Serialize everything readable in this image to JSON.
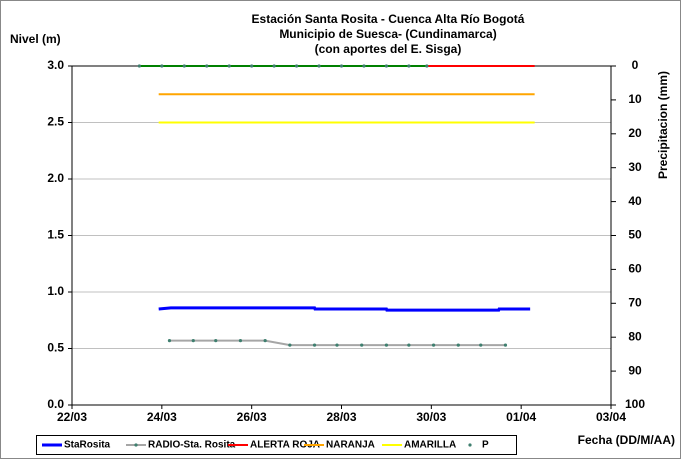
{
  "chart_data": {
    "type": "line",
    "title": [
      "Estación Santa Rosita - Cuenca Alta Río Bogotá",
      "Municipio de Suesca- (Cundinamarca)",
      "(con aportes del  E. Sisga)"
    ],
    "y_label": "Nivel (m)",
    "y2_label": "Precipitacion (mm)",
    "x_label": "Fecha (DD/M/AA)",
    "xlim": [
      22,
      34
    ],
    "xticks": [
      {
        "value": 22,
        "label": "22/03"
      },
      {
        "value": 24,
        "label": "24/03"
      },
      {
        "value": 26,
        "label": "26/03"
      },
      {
        "value": 28,
        "label": "28/03"
      },
      {
        "value": 30,
        "label": "30/03"
      },
      {
        "value": 32,
        "label": "01/04"
      },
      {
        "value": 34,
        "label": "03/04"
      }
    ],
    "ylim": [
      0,
      3
    ],
    "yticks": [
      {
        "value": 0,
        "label": "0.0"
      },
      {
        "value": 0.5,
        "label": "0.5"
      },
      {
        "value": 1,
        "label": "1.0"
      },
      {
        "value": 1.5,
        "label": "1.5"
      },
      {
        "value": 2,
        "label": "2.0"
      },
      {
        "value": 2.5,
        "label": "2.5"
      },
      {
        "value": 3,
        "label": "3.0"
      }
    ],
    "y2lim": [
      100,
      0
    ],
    "y2ticks": [
      0,
      10,
      20,
      30,
      40,
      50,
      60,
      70,
      80,
      90,
      100
    ],
    "grid": true,
    "legend": "bottom",
    "series": [
      {
        "name": "StaRosita",
        "color": "#0000ff",
        "width": 3,
        "markers": false,
        "x": [
          23.93,
          24.2,
          27.4,
          27.41,
          29.0,
          29.01,
          31.5,
          31.51,
          32.2
        ],
        "values": [
          0.85,
          0.86,
          0.86,
          0.85,
          0.85,
          0.84,
          0.84,
          0.85,
          0.85
        ]
      },
      {
        "name": "RADIO-Sta. Rosita",
        "color": "#a6a6a6",
        "width": 2,
        "markers": true,
        "marker_color": "#3f7f6f",
        "x": [
          24.17,
          24.7,
          25.2,
          25.75,
          26.3,
          26.85,
          27.4,
          27.9,
          28.45,
          29.0,
          29.5,
          30.05,
          30.6,
          31.1,
          31.65
        ],
        "values": [
          0.57,
          0.57,
          0.57,
          0.57,
          0.57,
          0.53,
          0.53,
          0.53,
          0.53,
          0.53,
          0.53,
          0.53,
          0.53,
          0.53,
          0.53
        ]
      },
      {
        "name": "ALERTA ROJA",
        "color": "#ff0000",
        "width": 2,
        "markers": false,
        "x": [
          23.5,
          32.3
        ],
        "values": [
          3,
          3
        ]
      },
      {
        "name": "NARANJA",
        "color": "#ffa500",
        "width": 2,
        "markers": false,
        "x": [
          23.93,
          32.3
        ],
        "values": [
          2.75,
          2.75
        ]
      },
      {
        "name": "AMARILLA",
        "color": "#ffff00",
        "width": 2,
        "markers": false,
        "x": [
          23.93,
          32.3
        ],
        "values": [
          2.5,
          2.5
        ]
      },
      {
        "name": "P",
        "color": "#008000",
        "width": 2,
        "markers": true,
        "marker_color": "#3f7f6f",
        "axis": "y2",
        "x": [
          23.5,
          24.0,
          24.5,
          25.0,
          25.5,
          26.0,
          26.5,
          27.0,
          27.5,
          28.0,
          28.5,
          29.0,
          29.5,
          29.9
        ],
        "values": [
          0,
          0,
          0,
          0,
          0,
          0,
          0,
          0,
          0,
          0,
          0,
          0,
          0,
          0
        ]
      }
    ]
  }
}
